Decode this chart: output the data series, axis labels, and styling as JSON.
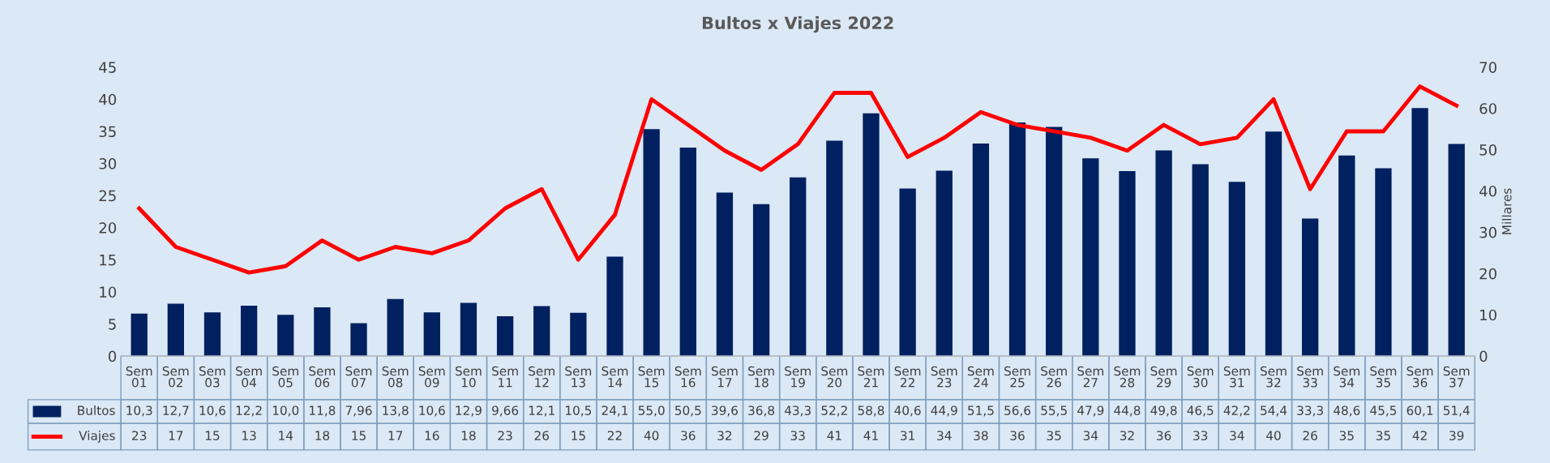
{
  "chart_data": {
    "type": "bar",
    "title": "Bultos x Viajes 2022",
    "y2label": "Millares",
    "categories": [
      "Sem 01",
      "Sem 02",
      "Sem 03",
      "Sem 04",
      "Sem 05",
      "Sem 06",
      "Sem 07",
      "Sem 08",
      "Sem 09",
      "Sem 10",
      "Sem 11",
      "Sem 12",
      "Sem 13",
      "Sem 14",
      "Sem 15",
      "Sem 16",
      "Sem 17",
      "Sem 18",
      "Sem 19",
      "Sem 20",
      "Sem 21",
      "Sem 22",
      "Sem 23",
      "Sem 24",
      "Sem 25",
      "Sem 26",
      "Sem 27",
      "Sem 28",
      "Sem 29",
      "Sem 30",
      "Sem 31",
      "Sem 32",
      "Sem 33",
      "Sem 34",
      "Sem 35",
      "Sem 36",
      "Sem 37"
    ],
    "series": [
      {
        "name": "Bultos",
        "axis": "y2",
        "color": "#002060",
        "values": [
          10.3,
          12.7,
          10.6,
          12.2,
          10.0,
          11.8,
          7.96,
          13.8,
          10.6,
          12.9,
          9.66,
          12.1,
          10.5,
          24.1,
          55.0,
          50.5,
          39.6,
          36.8,
          43.3,
          52.2,
          58.8,
          40.6,
          44.9,
          51.5,
          56.6,
          55.5,
          47.9,
          44.8,
          49.8,
          46.5,
          42.2,
          54.4,
          33.3,
          48.6,
          45.5,
          60.1,
          51.4
        ],
        "value_labels": [
          "10,3",
          "12,7",
          "10,6",
          "12,2",
          "10,0",
          "11,8",
          "7,96",
          "13,8",
          "10,6",
          "12,9",
          "9,66",
          "12,1",
          "10,5",
          "24,1",
          "55,0",
          "50,5",
          "39,6",
          "36,8",
          "43,3",
          "52,2",
          "58,8",
          "40,6",
          "44,9",
          "51,5",
          "56,6",
          "55,5",
          "47,9",
          "44,8",
          "49,8",
          "46,5",
          "42,2",
          "54,4",
          "33,3",
          "48,6",
          "45,5",
          "60,1",
          "51,4"
        ]
      },
      {
        "name": "Viajes",
        "type": "line",
        "color": "#ff0000",
        "values": [
          23,
          17,
          15,
          13,
          14,
          18,
          15,
          17,
          16,
          18,
          23,
          26,
          15,
          22,
          40,
          36,
          32,
          29,
          33,
          41,
          41,
          31,
          34,
          38,
          36,
          35,
          34,
          32,
          36,
          33,
          34,
          40,
          26,
          35,
          35,
          42,
          39
        ],
        "value_labels": [
          "23",
          "17",
          "15",
          "13",
          "14",
          "18",
          "15",
          "17",
          "16",
          "18",
          "23",
          "26",
          "15",
          "22",
          "40",
          "36",
          "32",
          "29",
          "33",
          "41",
          "41",
          "31",
          "34",
          "38",
          "36",
          "35",
          "34",
          "32",
          "36",
          "33",
          "34",
          "40",
          "26",
          "35",
          "35",
          "42",
          "39"
        ]
      }
    ],
    "ylim": [
      0,
      45
    ],
    "yticks": [
      0,
      5,
      10,
      15,
      20,
      25,
      30,
      35,
      40,
      45
    ],
    "y2lim": [
      0,
      70
    ],
    "y2ticks": [
      0,
      10,
      20,
      30,
      40,
      50,
      60,
      70
    ],
    "legend": "bottom",
    "grid": false,
    "marker": "none",
    "line_style": "solid"
  }
}
